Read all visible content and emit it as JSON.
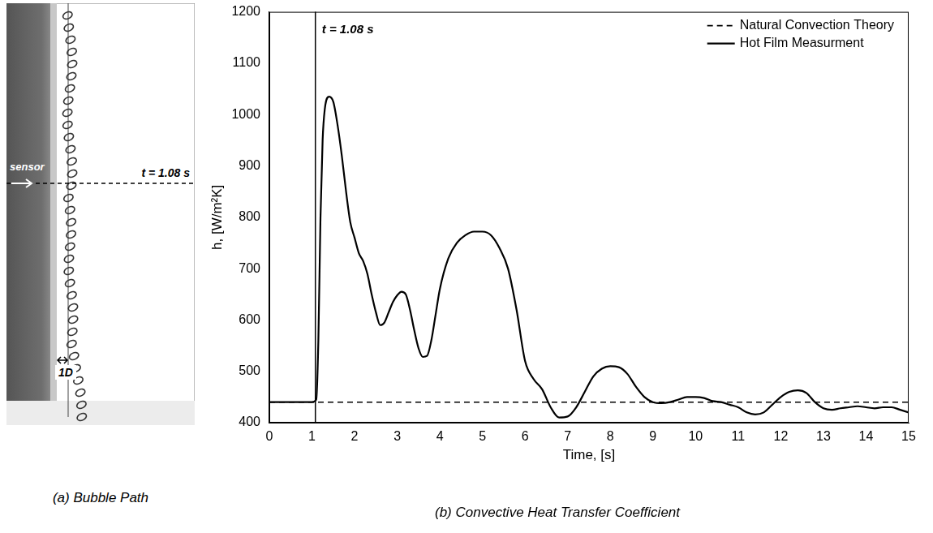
{
  "bubble_path": {
    "caption": "(a) Bubble Path",
    "sensor_label": "sensor",
    "time_label": "t = 1.08 s",
    "scale_label": "1D"
  },
  "chart_data": {
    "type": "line",
    "title": "(b) Convective Heat Transfer Coefficient",
    "x_label": "Time, [s]",
    "y_label": "h, [W/m²K]",
    "xlim": [
      0,
      15
    ],
    "xticks": [
      0,
      1,
      2,
      3,
      4,
      5,
      6,
      7,
      8,
      9,
      10,
      11,
      12,
      13,
      14,
      15
    ],
    "ylim": [
      400,
      1200
    ],
    "yticks": [
      400,
      500,
      600,
      700,
      800,
      900,
      1000,
      1100,
      1200
    ],
    "grid": false,
    "legend": "upper right",
    "annotations": [
      {
        "x": 1.08,
        "label": "t = 1.08 s"
      }
    ],
    "series": [
      {
        "name": "Natural Convection Theory",
        "color": "#000000",
        "line_style": "dashed",
        "marker": "none",
        "x": [
          0,
          15
        ],
        "values": [
          440,
          440
        ]
      },
      {
        "name": "Hot Film Measurment",
        "color": "#000000",
        "line_style": "solid",
        "marker": "none",
        "x": [
          0,
          0.5,
          1.0,
          1.1,
          1.15,
          1.2,
          1.25,
          1.3,
          1.4,
          1.5,
          1.6,
          1.7,
          1.8,
          1.9,
          2.0,
          2.1,
          2.2,
          2.3,
          2.4,
          2.5,
          2.6,
          2.7,
          2.8,
          2.9,
          3.0,
          3.1,
          3.2,
          3.3,
          3.4,
          3.5,
          3.6,
          3.7,
          3.8,
          3.9,
          4.0,
          4.2,
          4.4,
          4.6,
          4.8,
          5.0,
          5.2,
          5.4,
          5.6,
          5.8,
          6.0,
          6.2,
          6.4,
          6.6,
          6.8,
          7.0,
          7.2,
          7.4,
          7.6,
          7.8,
          8.0,
          8.2,
          8.4,
          8.6,
          8.8,
          9.0,
          9.2,
          9.4,
          9.6,
          9.8,
          10.0,
          10.2,
          10.4,
          10.6,
          10.8,
          11.0,
          11.2,
          11.4,
          11.6,
          11.8,
          12.0,
          12.2,
          12.4,
          12.6,
          12.8,
          13.0,
          13.2,
          13.4,
          13.6,
          13.8,
          14.0,
          14.2,
          14.4,
          14.6,
          14.8,
          15.0
        ],
        "values": [
          440,
          440,
          440,
          445,
          560,
          800,
          950,
          1010,
          1035,
          1025,
          980,
          920,
          850,
          790,
          760,
          730,
          715,
          690,
          650,
          615,
          590,
          595,
          615,
          635,
          648,
          655,
          650,
          620,
          580,
          545,
          528,
          530,
          560,
          610,
          660,
          720,
          750,
          765,
          772,
          772,
          765,
          740,
          700,
          620,
          520,
          485,
          465,
          430,
          410,
          412,
          430,
          460,
          490,
          505,
          510,
          508,
          495,
          470,
          450,
          440,
          438,
          440,
          445,
          450,
          450,
          448,
          442,
          440,
          435,
          430,
          420,
          416,
          420,
          435,
          450,
          460,
          463,
          458,
          440,
          428,
          425,
          428,
          430,
          432,
          430,
          428,
          430,
          430,
          425,
          420
        ]
      }
    ]
  }
}
